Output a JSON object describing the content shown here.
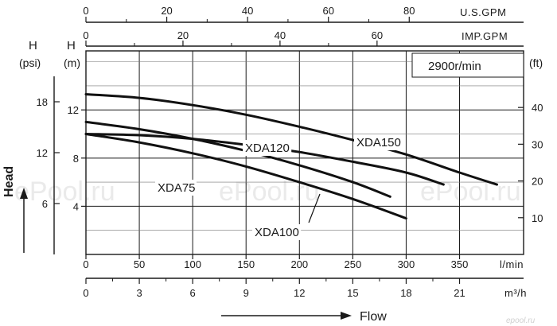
{
  "chart_data": {
    "type": "line",
    "title": "",
    "speed_label": "2900r/min",
    "x_axes": {
      "flow_lmin": {
        "unit": "l/min",
        "range": [
          0,
          410
        ],
        "ticks": [
          0,
          50,
          100,
          150,
          200,
          250,
          300,
          350
        ]
      },
      "flow_m3h": {
        "unit": "m³/h",
        "range": [
          0,
          24.6
        ],
        "ticks": [
          0,
          3,
          6,
          9,
          12,
          15,
          18,
          21
        ]
      },
      "flow_usgpm": {
        "unit": "U.S.GPM",
        "range": [
          0,
          108.3
        ],
        "ticks": [
          0,
          20,
          40,
          60,
          80
        ]
      },
      "flow_impgpm": {
        "unit": "IMP.GPM",
        "range": [
          0,
          90.2
        ],
        "ticks": [
          0,
          20,
          40,
          60
        ]
      }
    },
    "y_axes": {
      "head_m": {
        "label": "H",
        "unit": "(m)",
        "range": [
          0,
          16.9
        ],
        "ticks": [
          4,
          8,
          12
        ]
      },
      "head_psi": {
        "label": "H",
        "unit": "(psi)",
        "range": [
          0,
          24
        ],
        "ticks": [
          6,
          12,
          18
        ]
      },
      "head_ft": {
        "unit": "(ft)",
        "range": [
          0,
          55.4
        ],
        "ticks": [
          10,
          20,
          30,
          40
        ]
      }
    },
    "ylabel": "Head",
    "xlabel": "Flow",
    "series": [
      {
        "name": "XDA150",
        "x": [
          0,
          50,
          100,
          150,
          200,
          250,
          300,
          350,
          385
        ],
        "y": [
          13.3,
          13.0,
          12.4,
          11.6,
          10.6,
          9.5,
          8.3,
          6.8,
          5.8
        ]
      },
      {
        "name": "XDA120",
        "x": [
          0,
          50,
          100,
          150,
          200,
          250,
          300,
          335
        ],
        "y": [
          10.0,
          9.9,
          9.6,
          9.1,
          8.5,
          7.7,
          6.8,
          5.8
        ]
      },
      {
        "name": "XDA100",
        "x": [
          0,
          50,
          100,
          150,
          200,
          250,
          285
        ],
        "y": [
          11.0,
          10.4,
          9.6,
          8.6,
          7.4,
          6.0,
          4.8
        ]
      },
      {
        "name": "XDA75",
        "x": [
          0,
          50,
          100,
          150,
          200,
          250,
          300
        ],
        "y": [
          10.0,
          9.3,
          8.4,
          7.3,
          6.0,
          4.6,
          3.0
        ]
      }
    ],
    "series_labels": [
      "XDA150",
      "XDA120",
      "XDA100",
      "XDA75"
    ],
    "grid": true,
    "legend": "inline labels"
  },
  "watermarks": [
    "ePool.ru",
    "ePool.ru",
    "ePool.ru"
  ],
  "logo_text": "epool.ru"
}
